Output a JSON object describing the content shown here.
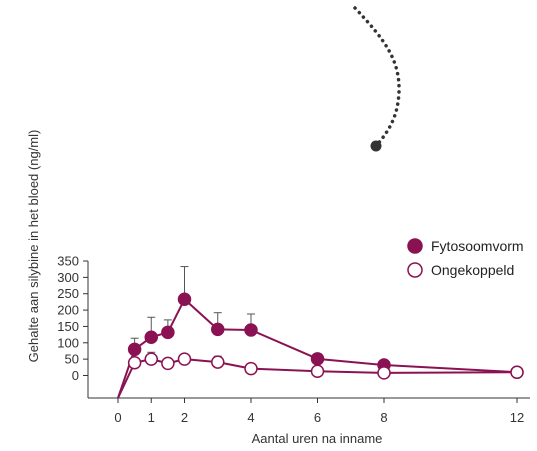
{
  "chart_data": {
    "type": "line",
    "xlabel": "Aantal uren na inname",
    "ylabel": "Gehalte aan silybine in het bloed (ng/ml)",
    "xlim": [
      0,
      12
    ],
    "ylim": [
      0,
      350
    ],
    "x_ticks": [
      0,
      1,
      2,
      4,
      6,
      8,
      12
    ],
    "x_tick_labels": [
      "0",
      "1",
      "2",
      "4",
      "6",
      "8",
      "12"
    ],
    "y_ticks": [
      0,
      50,
      100,
      150,
      200,
      250,
      300,
      350
    ],
    "y_tick_labels": [
      "0",
      "50",
      "100",
      "150",
      "200",
      "250",
      "300",
      "350"
    ],
    "grid": false,
    "legend_position": "right",
    "series": [
      {
        "name": "Fytosoomvorm",
        "color": "#8b1252",
        "marker": "filled-circle",
        "x": [
          0.5,
          1,
          1.5,
          2,
          3,
          4,
          6,
          8,
          12
        ],
        "y": [
          80,
          117,
          132,
          233,
          141,
          139,
          51,
          32,
          10
        ],
        "error_upper": [
          114,
          178,
          170,
          333,
          192,
          188,
          67,
          45,
          20
        ],
        "line_from_origin": true
      },
      {
        "name": "Ongekoppeld",
        "color": "#8b1252",
        "marker": "open-circle",
        "x": [
          0.5,
          1,
          1.5,
          2,
          3,
          4,
          6,
          8,
          12
        ],
        "y": [
          39,
          50,
          37,
          50,
          41,
          21,
          13,
          8,
          10
        ],
        "error_upper": [
          64,
          71,
          50,
          62,
          59,
          30,
          22,
          18,
          18
        ],
        "line_from_origin": true
      }
    ]
  },
  "decoration": {
    "name": "dotted-curve",
    "color": "#333333"
  }
}
